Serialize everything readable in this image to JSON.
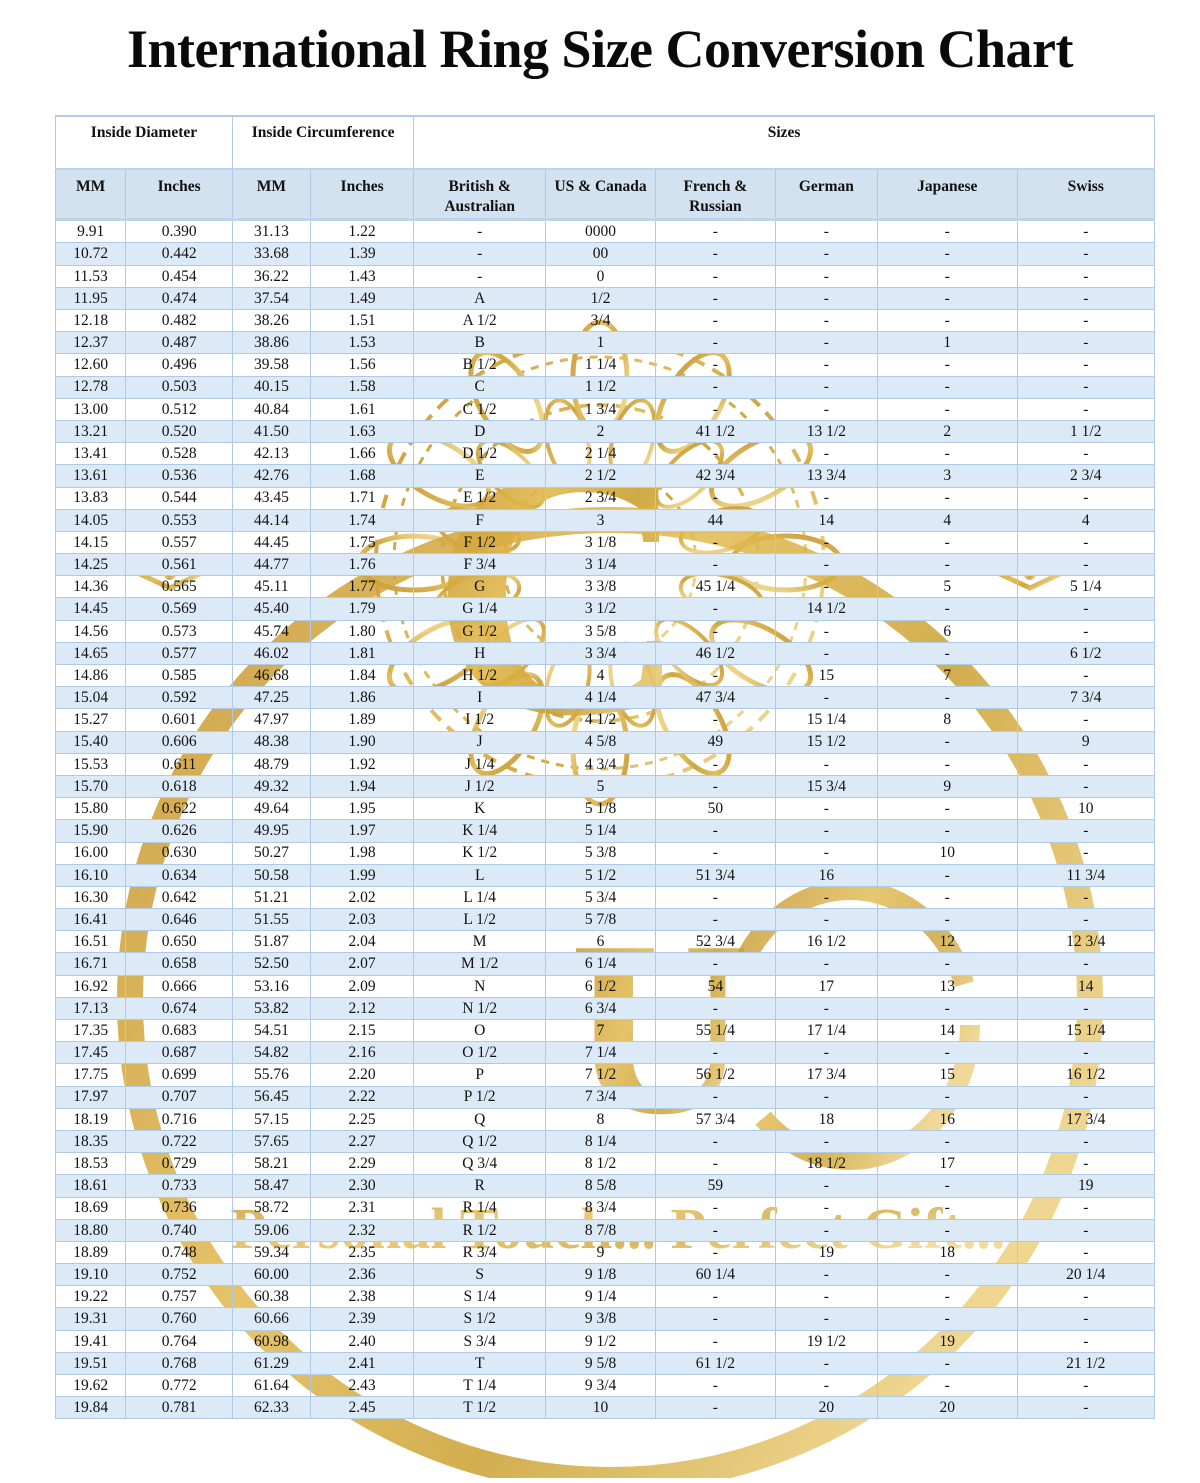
{
  "title": "International Ring Size Conversion Chart",
  "table": {
    "group_headers": [
      {
        "label": "Inside Diameter",
        "colspan": 2
      },
      {
        "label": "Inside Circumference",
        "colspan": 2
      },
      {
        "label": "Sizes",
        "colspan": 6
      }
    ],
    "columns": [
      "MM",
      "Inches",
      "MM",
      "Inches",
      "British & Australian",
      "US & Canada",
      "French & Russian",
      "German",
      "Japanese",
      "Swiss"
    ],
    "rows": [
      [
        "9.91",
        "0.390",
        "31.13",
        "1.22",
        "-",
        "0000",
        "-",
        "-",
        "-",
        "-"
      ],
      [
        "10.72",
        "0.442",
        "33.68",
        "1.39",
        "-",
        "00",
        "-",
        "-",
        "-",
        "-"
      ],
      [
        "11.53",
        "0.454",
        "36.22",
        "1.43",
        "-",
        "0",
        "-",
        "-",
        "-",
        "-"
      ],
      [
        "11.95",
        "0.474",
        "37.54",
        "1.49",
        "A",
        "1/2",
        "-",
        "-",
        "-",
        "-"
      ],
      [
        "12.18",
        "0.482",
        "38.26",
        "1.51",
        "A 1/2",
        "3/4",
        "-",
        "-",
        "-",
        "-"
      ],
      [
        "12.37",
        "0.487",
        "38.86",
        "1.53",
        "B",
        "1",
        "-",
        "-",
        "1",
        "-"
      ],
      [
        "12.60",
        "0.496",
        "39.58",
        "1.56",
        "B 1/2",
        "1 1/4",
        "-",
        "-",
        "-",
        "-"
      ],
      [
        "12.78",
        "0.503",
        "40.15",
        "1.58",
        "C",
        "1 1/2",
        "-",
        "-",
        "-",
        "-"
      ],
      [
        "13.00",
        "0.512",
        "40.84",
        "1.61",
        "C 1/2",
        "1 3/4",
        "-",
        "-",
        "-",
        "-"
      ],
      [
        "13.21",
        "0.520",
        "41.50",
        "1.63",
        "D",
        "2",
        "41 1/2",
        "13 1/2",
        "2",
        "1 1/2"
      ],
      [
        "13.41",
        "0.528",
        "42.13",
        "1.66",
        "D 1/2",
        "2 1/4",
        "-",
        "-",
        "-",
        "-"
      ],
      [
        "13.61",
        "0.536",
        "42.76",
        "1.68",
        "E",
        "2 1/2",
        "42 3/4",
        "13 3/4",
        "3",
        "2 3/4"
      ],
      [
        "13.83",
        "0.544",
        "43.45",
        "1.71",
        "E 1/2",
        "2 3/4",
        "-",
        "-",
        "-",
        "-"
      ],
      [
        "14.05",
        "0.553",
        "44.14",
        "1.74",
        "F",
        "3",
        "44",
        "14",
        "4",
        "4"
      ],
      [
        "14.15",
        "0.557",
        "44.45",
        "1.75",
        "F 1/2",
        "3 1/8",
        "-",
        "-",
        "-",
        "-"
      ],
      [
        "14.25",
        "0.561",
        "44.77",
        "1.76",
        "F 3/4",
        "3 1/4",
        "-",
        "-",
        "-",
        "-"
      ],
      [
        "14.36",
        "0.565",
        "45.11",
        "1.77",
        "G",
        "3 3/8",
        "45 1/4",
        "-",
        "5",
        "5 1/4"
      ],
      [
        "14.45",
        "0.569",
        "45.40",
        "1.79",
        "G 1/4",
        "3 1/2",
        "-",
        "14 1/2",
        "-",
        "-"
      ],
      [
        "14.56",
        "0.573",
        "45.74",
        "1.80",
        "G 1/2",
        "3 5/8",
        "-",
        "-",
        "6",
        "-"
      ],
      [
        "14.65",
        "0.577",
        "46.02",
        "1.81",
        "H",
        "3 3/4",
        "46 1/2",
        "-",
        "-",
        "6 1/2"
      ],
      [
        "14.86",
        "0.585",
        "46.68",
        "1.84",
        "H 1/2",
        "4",
        "-",
        "15",
        "7",
        "-"
      ],
      [
        "15.04",
        "0.592",
        "47.25",
        "1.86",
        "I",
        "4 1/4",
        "47 3/4",
        "-",
        "-",
        "7 3/4"
      ],
      [
        "15.27",
        "0.601",
        "47.97",
        "1.89",
        "I 1/2",
        "4 1/2",
        "-",
        "15 1/4",
        "8",
        "-"
      ],
      [
        "15.40",
        "0.606",
        "48.38",
        "1.90",
        "J",
        "4 5/8",
        "49",
        "15 1/2",
        "-",
        "9"
      ],
      [
        "15.53",
        "0.611",
        "48.79",
        "1.92",
        "J 1/4",
        "4 3/4",
        "-",
        "-",
        "-",
        "-"
      ],
      [
        "15.70",
        "0.618",
        "49.32",
        "1.94",
        "J 1/2",
        "5",
        "-",
        "15 3/4",
        "9",
        "-"
      ],
      [
        "15.80",
        "0.622",
        "49.64",
        "1.95",
        "K",
        "5 1/8",
        "50",
        "-",
        "-",
        "10"
      ],
      [
        "15.90",
        "0.626",
        "49.95",
        "1.97",
        "K 1/4",
        "5 1/4",
        "-",
        "-",
        "-",
        "-"
      ],
      [
        "16.00",
        "0.630",
        "50.27",
        "1.98",
        "K 1/2",
        "5 3/8",
        "-",
        "-",
        "10",
        "-"
      ],
      [
        "16.10",
        "0.634",
        "50.58",
        "1.99",
        "L",
        "5 1/2",
        "51 3/4",
        "16",
        "-",
        "11 3/4"
      ],
      [
        "16.30",
        "0.642",
        "51.21",
        "2.02",
        "L 1/4",
        "5 3/4",
        "-",
        "-",
        "-",
        "-"
      ],
      [
        "16.41",
        "0.646",
        "51.55",
        "2.03",
        "L 1/2",
        "5 7/8",
        "-",
        "-",
        "-",
        "-"
      ],
      [
        "16.51",
        "0.650",
        "51.87",
        "2.04",
        "M",
        "6",
        "52 3/4",
        "16 1/2",
        "12",
        "12 3/4"
      ],
      [
        "16.71",
        "0.658",
        "52.50",
        "2.07",
        "M 1/2",
        "6 1/4",
        "-",
        "-",
        "-",
        "-"
      ],
      [
        "16.92",
        "0.666",
        "53.16",
        "2.09",
        "N",
        "6 1/2",
        "54",
        "17",
        "13",
        "14"
      ],
      [
        "17.13",
        "0.674",
        "53.82",
        "2.12",
        "N 1/2",
        "6 3/4",
        "-",
        "-",
        "-",
        "-"
      ],
      [
        "17.35",
        "0.683",
        "54.51",
        "2.15",
        "O",
        "7",
        "55 1/4",
        "17 1/4",
        "14",
        "15 1/4"
      ],
      [
        "17.45",
        "0.687",
        "54.82",
        "2.16",
        "O 1/2",
        "7 1/4",
        "-",
        "-",
        "-",
        "-"
      ],
      [
        "17.75",
        "0.699",
        "55.76",
        "2.20",
        "P",
        "7 1/2",
        "56 1/2",
        "17 3/4",
        "15",
        "16 1/2"
      ],
      [
        "17.97",
        "0.707",
        "56.45",
        "2.22",
        "P 1/2",
        "7 3/4",
        "-",
        "-",
        "-",
        "-"
      ],
      [
        "18.19",
        "0.716",
        "57.15",
        "2.25",
        "Q",
        "8",
        "57 3/4",
        "18",
        "16",
        "17 3/4"
      ],
      [
        "18.35",
        "0.722",
        "57.65",
        "2.27",
        "Q 1/2",
        "8 1/4",
        "-",
        "-",
        "-",
        "-"
      ],
      [
        "18.53",
        "0.729",
        "58.21",
        "2.29",
        "Q 3/4",
        "8 1/2",
        "-",
        "18 1/2",
        "17",
        "-"
      ],
      [
        "18.61",
        "0.733",
        "58.47",
        "2.30",
        "R",
        "8 5/8",
        "59",
        "-",
        "-",
        "19"
      ],
      [
        "18.69",
        "0.736",
        "58.72",
        "2.31",
        "R 1/4",
        "8 3/4",
        "-",
        "-",
        "-",
        "-"
      ],
      [
        "18.80",
        "0.740",
        "59.06",
        "2.32",
        "R 1/2",
        "8 7/8",
        "-",
        "-",
        "-",
        "-"
      ],
      [
        "18.89",
        "0.748",
        "59.34",
        "2.35",
        "R 3/4",
        "9",
        "-",
        "19",
        "18",
        "-"
      ],
      [
        "19.10",
        "0.752",
        "60.00",
        "2.36",
        "S",
        "9 1/8",
        "60 1/4",
        "-",
        "-",
        "20 1/4"
      ],
      [
        "19.22",
        "0.757",
        "60.38",
        "2.38",
        "S 1/4",
        "9 1/4",
        "-",
        "-",
        "-",
        "-"
      ],
      [
        "19.31",
        "0.760",
        "60.66",
        "2.39",
        "S 1/2",
        "9 3/8",
        "-",
        "-",
        "-",
        "-"
      ],
      [
        "19.41",
        "0.764",
        "60.98",
        "2.40",
        "S 3/4",
        "9 1/2",
        "-",
        "19 1/2",
        "19",
        "-"
      ],
      [
        "19.51",
        "0.768",
        "61.29",
        "2.41",
        "T",
        "9 5/8",
        "61 1/2",
        "-",
        "-",
        "21 1/2"
      ],
      [
        "19.62",
        "0.772",
        "61.64",
        "2.43",
        "T 1/4",
        "9 3/4",
        "-",
        "-",
        "-",
        "-"
      ],
      [
        "19.84",
        "0.781",
        "62.33",
        "2.45",
        "T 1/2",
        "10",
        "-",
        "20",
        "20",
        "-"
      ]
    ]
  },
  "watermark": {
    "letter": "C",
    "letter2": "U",
    "text": "Personal Touch... Perfect Gift...",
    "gold_dark": "#c08f28",
    "gold_mid": "#d8ab3f",
    "gold_light": "#eccf7e"
  },
  "colors": {
    "row_alt": "#dce9f7",
    "header_bg": "#d3e2f0",
    "border": "#b0c9e4",
    "text": "#121212"
  }
}
